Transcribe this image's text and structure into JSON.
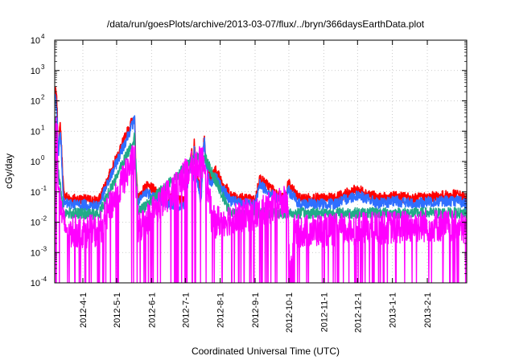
{
  "chart_data": {
    "type": "line",
    "title": "/data/run/goesPlots/archive/2013-03-07/flux/../bryn/366daysEarthData.plot",
    "xlabel": "Coordinated Universal Time (UTC)",
    "ylabel": "cGy/day",
    "yscale": "log",
    "ylim": [
      0.0001,
      10000
    ],
    "xlim": [
      "2012-03-07",
      "2013-03-08"
    ],
    "grid": true,
    "x_ticks": [
      "2012-4-1",
      "2012-5-1",
      "2012-6-1",
      "2012-7-1",
      "2012-8-1",
      "2012-9-1",
      "2012-10-1",
      "2012-11-1",
      "2012-12-1",
      "2013-1-1",
      "2013-2-1"
    ],
    "y_ticks": [
      {
        "base": "10",
        "exp": "-4",
        "value": 0.0001
      },
      {
        "base": "10",
        "exp": "-3",
        "value": 0.001
      },
      {
        "base": "10",
        "exp": "-2",
        "value": 0.01
      },
      {
        "base": "10",
        "exp": "-1",
        "value": 0.1
      },
      {
        "base": "10",
        "exp": "0",
        "value": 1
      },
      {
        "base": "10",
        "exp": "1",
        "value": 10
      },
      {
        "base": "10",
        "exp": "2",
        "value": 100
      },
      {
        "base": "10",
        "exp": "3",
        "value": 1000
      },
      {
        "base": "10",
        "exp": "4",
        "value": 10000
      }
    ],
    "series_colors": [
      "#ff0000",
      "#2f6fff",
      "#22aa88",
      "#ff00ff"
    ],
    "series": [
      {
        "color": "#ff0000",
        "x": [
          "2012-03-07",
          "2012-03-08",
          "2012-03-09",
          "2012-03-10",
          "2012-03-12",
          "2012-03-14",
          "2012-03-15",
          "2012-03-20",
          "2012-04-15",
          "2012-05-17",
          "2012-05-18",
          "2012-05-20",
          "2012-05-27",
          "2012-06-08",
          "2012-06-16",
          "2012-06-30",
          "2012-07-07",
          "2012-07-08",
          "2012-07-09",
          "2012-07-10",
          "2012-07-12",
          "2012-07-15",
          "2012-07-17",
          "2012-07-18",
          "2012-07-19",
          "2012-07-23",
          "2012-07-28",
          "2012-08-10",
          "2012-09-01",
          "2012-09-05",
          "2012-09-28",
          "2012-09-30",
          "2012-10-10",
          "2012-11-10",
          "2012-12-01",
          "2012-12-20",
          "2013-01-05",
          "2013-01-20",
          "2013-02-10",
          "2013-02-28",
          "2013-03-07"
        ],
        "y": [
          150,
          200,
          80,
          2,
          18,
          0.5,
          0.08,
          0.06,
          0.05,
          35,
          0.5,
          0.06,
          0.15,
          0.1,
          0.06,
          0.05,
          2.5,
          0.3,
          4.5,
          1.2,
          0.3,
          0.08,
          4,
          6,
          1.5,
          0.3,
          0.5,
          0.08,
          0.05,
          0.28,
          0.05,
          0.2,
          0.06,
          0.06,
          0.12,
          0.06,
          0.07,
          0.06,
          0.07,
          0.08,
          0.06
        ]
      },
      {
        "color": "#2f6fff",
        "x": [
          "2012-03-07",
          "2012-03-08",
          "2012-03-09",
          "2012-03-10",
          "2012-03-12",
          "2012-03-14",
          "2012-03-15",
          "2012-03-20",
          "2012-04-15",
          "2012-05-17",
          "2012-05-18",
          "2012-05-20",
          "2012-05-27",
          "2012-06-08",
          "2012-06-16",
          "2012-06-30",
          "2012-07-07",
          "2012-07-08",
          "2012-07-09",
          "2012-07-10",
          "2012-07-12",
          "2012-07-15",
          "2012-07-17",
          "2012-07-18",
          "2012-07-19",
          "2012-07-23",
          "2012-07-28",
          "2012-08-10",
          "2012-09-01",
          "2012-09-05",
          "2012-09-28",
          "2012-09-30",
          "2012-10-10",
          "2012-11-10",
          "2012-12-01",
          "2012-12-20",
          "2013-01-05",
          "2013-01-20",
          "2013-02-10",
          "2013-02-28",
          "2013-03-07"
        ],
        "y": [
          100,
          120,
          40,
          1.5,
          10,
          0.3,
          0.04,
          0.04,
          0.035,
          25,
          0.3,
          0.04,
          0.1,
          0.06,
          0.04,
          0.035,
          1.8,
          0.2,
          3,
          0.8,
          0.2,
          0.05,
          2.5,
          4,
          1,
          0.2,
          0.3,
          0.05,
          0.035,
          0.18,
          0.035,
          0.12,
          0.04,
          0.04,
          0.08,
          0.04,
          0.05,
          0.04,
          0.05,
          0.05,
          0.04
        ]
      },
      {
        "color": "#22aa88",
        "x": [
          "2012-03-07",
          "2012-03-10",
          "2012-03-15",
          "2012-04-15",
          "2012-05-17",
          "2012-05-20",
          "2012-07-09",
          "2012-07-18",
          "2012-08-10",
          "2012-10-10",
          "2012-12-20",
          "2013-03-07"
        ],
        "y": [
          30,
          0.5,
          0.02,
          0.018,
          6,
          0.02,
          1.2,
          1.5,
          0.02,
          0.02,
          0.02,
          0.02
        ]
      },
      {
        "color": "#ff00ff",
        "x": [
          "2012-03-07",
          "2012-03-09",
          "2012-03-10",
          "2012-03-14",
          "2012-03-20",
          "2012-04-15",
          "2012-05-17",
          "2012-05-20",
          "2012-07-09",
          "2012-07-18",
          "2012-07-25",
          "2012-09-05",
          "2012-09-30",
          "2012-10-02",
          "2012-10-05",
          "2012-12-01",
          "2013-02-10",
          "2013-03-07"
        ],
        "y": [
          8,
          15,
          0.3,
          0.01,
          0.005,
          0.005,
          1.5,
          0.006,
          0.8,
          1,
          0.01,
          0.02,
          0.05,
          0.0001,
          0.005,
          0.006,
          0.008,
          0.006
        ]
      }
    ]
  }
}
